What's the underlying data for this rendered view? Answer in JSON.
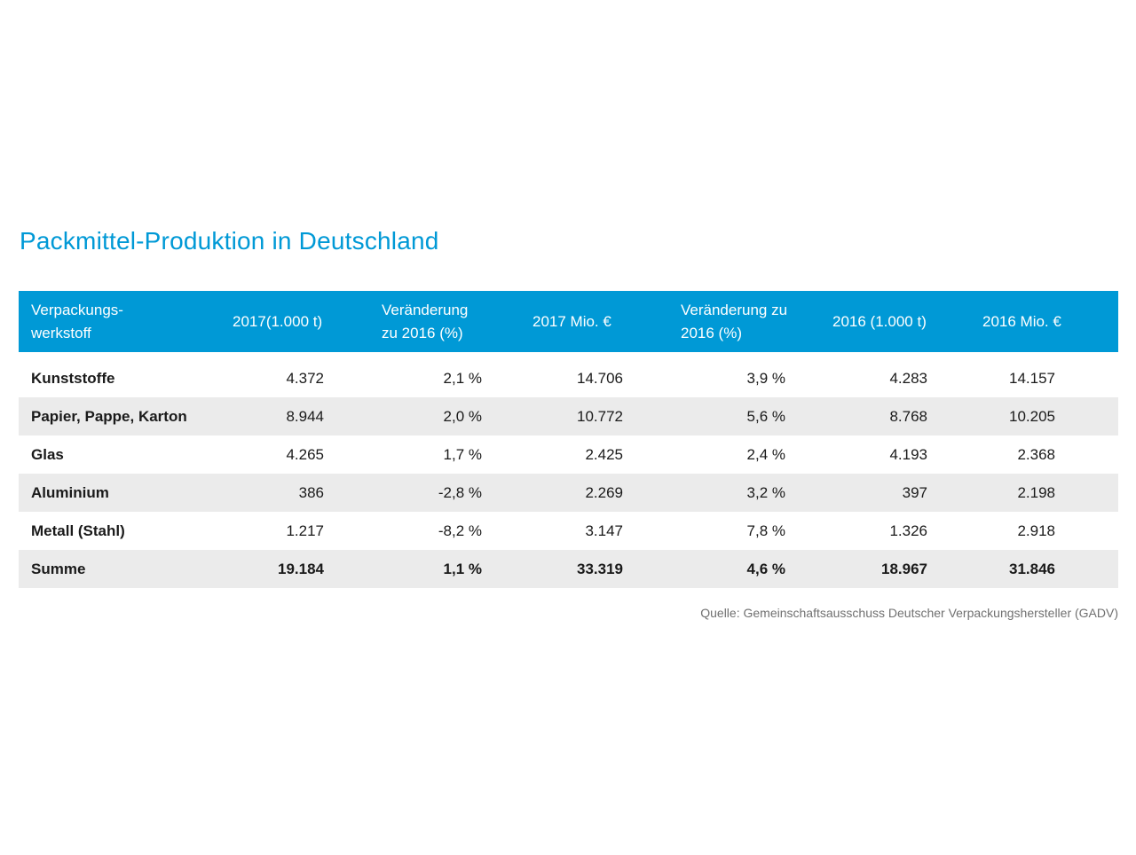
{
  "title": "Packmittel-Produktion in Deutschland",
  "header": {
    "col1": [
      "Verpackungs-",
      "werkstoff"
    ],
    "col2": [
      "2017(1.000 t)"
    ],
    "col3": [
      "Veränderung",
      "zu 2016 (%)"
    ],
    "col4": [
      "2017 Mio. €"
    ],
    "col5": [
      "Veränderung zu",
      "2016 (%)"
    ],
    "col6": [
      "2016 (1.000 t)"
    ],
    "col7": [
      "2016 Mio. €"
    ]
  },
  "rows": [
    {
      "name": "Kunststoffe",
      "t2017": "4.372",
      "chg_t": "2,1 %",
      "eur2017": "14.706",
      "chg_eur": "3,9 %",
      "t2016": "4.283",
      "eur2016": "14.157"
    },
    {
      "name": "Papier, Pappe, Karton",
      "t2017": "8.944",
      "chg_t": "2,0 %",
      "eur2017": "10.772",
      "chg_eur": "5,6 %",
      "t2016": "8.768",
      "eur2016": "10.205"
    },
    {
      "name": "Glas",
      "t2017": "4.265",
      "chg_t": "1,7 %",
      "eur2017": "2.425",
      "chg_eur": "2,4 %",
      "t2016": "4.193",
      "eur2016": "2.368"
    },
    {
      "name": "Aluminium",
      "t2017": "386",
      "chg_t": "-2,8 %",
      "eur2017": "2.269",
      "chg_eur": "3,2 %",
      "t2016": "397",
      "eur2016": "2.198"
    },
    {
      "name": "Metall (Stahl)",
      "t2017": "1.217",
      "chg_t": "-8,2 %",
      "eur2017": "3.147",
      "chg_eur": "7,8 %",
      "t2016": "1.326",
      "eur2016": "2.918"
    }
  ],
  "total": {
    "name": "Summe",
    "t2017": "19.184",
    "chg_t": "1,1 %",
    "eur2017": "33.319",
    "chg_eur": "4,6 %",
    "t2016": "18.967",
    "eur2016": "31.846"
  },
  "source": "Quelle: Gemeinschaftsausschuss Deutscher Verpackungshersteller (GADV)",
  "colors": {
    "accent": "#0099d6",
    "row_alt": "#ebebeb"
  }
}
